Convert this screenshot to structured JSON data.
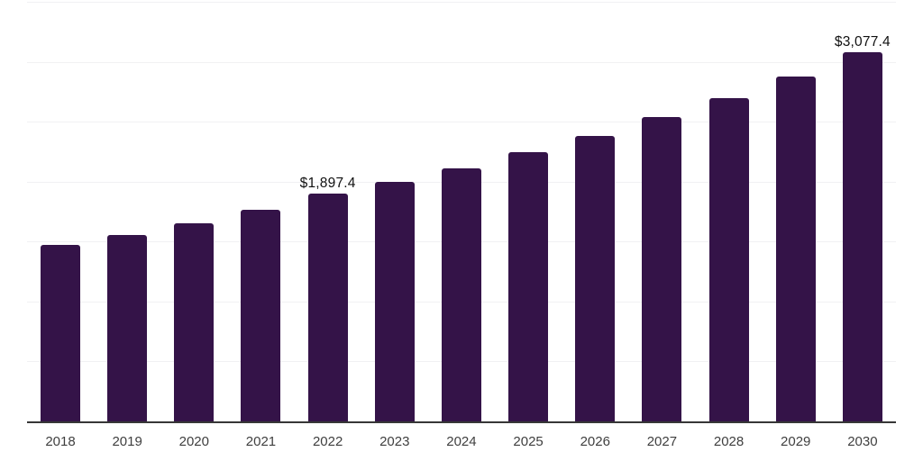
{
  "chart_data": {
    "type": "bar",
    "categories": [
      "2018",
      "2019",
      "2020",
      "2021",
      "2022",
      "2023",
      "2024",
      "2025",
      "2026",
      "2027",
      "2028",
      "2029",
      "2030"
    ],
    "values": [
      1475,
      1555,
      1650,
      1768,
      1897.4,
      2000,
      2110,
      2245,
      2380,
      2535,
      2695,
      2880,
      3077.4
    ],
    "point_labels": [
      null,
      null,
      null,
      null,
      "$1,897.4",
      null,
      null,
      null,
      null,
      null,
      null,
      null,
      "$3,077.4"
    ],
    "title": "",
    "xlabel": "",
    "ylabel": "",
    "ylim": [
      0,
      3500
    ],
    "gridline_step": 500,
    "grid": "horizontal",
    "y_tick_labels_visible": false,
    "legend": "none",
    "colors": {
      "bar": "#341348",
      "axis_line": "#373737",
      "gridline": "#f1f1f3",
      "tick_label": "#3f3f3f",
      "data_label": "#111111",
      "background": "#ffffff"
    }
  }
}
